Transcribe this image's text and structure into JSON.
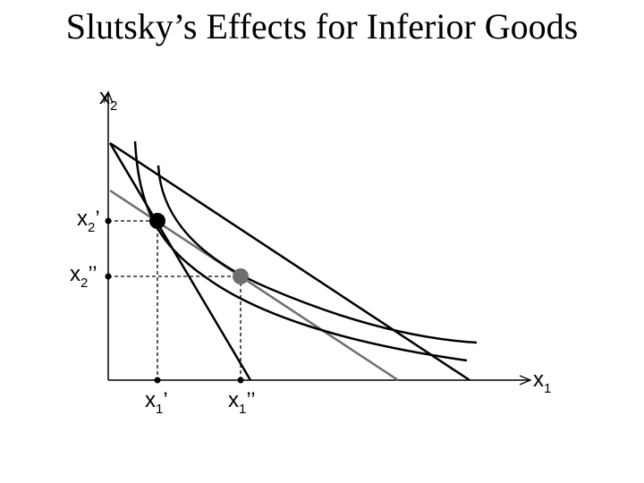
{
  "title": "Slutsky’s Effects for Inferior Goods",
  "axes": {
    "x_label": "x",
    "x_sub": "1",
    "y_label": "x",
    "y_sub": "2"
  },
  "points": {
    "x1_prime": {
      "base": "x",
      "sub": "1",
      "mark": "’"
    },
    "x1_double": {
      "base": "x",
      "sub": "1",
      "mark": "’’"
    },
    "x2_prime": {
      "base": "x",
      "sub": "2",
      "mark": "’"
    },
    "x2_double": {
      "base": "x",
      "sub": "2",
      "mark": "’’"
    }
  },
  "colors": {
    "line": "#000000",
    "pivoted_budget": "#6e6e6e",
    "original_bundle": "#000000",
    "intermediate_bundle": "#6e6e6e"
  }
}
